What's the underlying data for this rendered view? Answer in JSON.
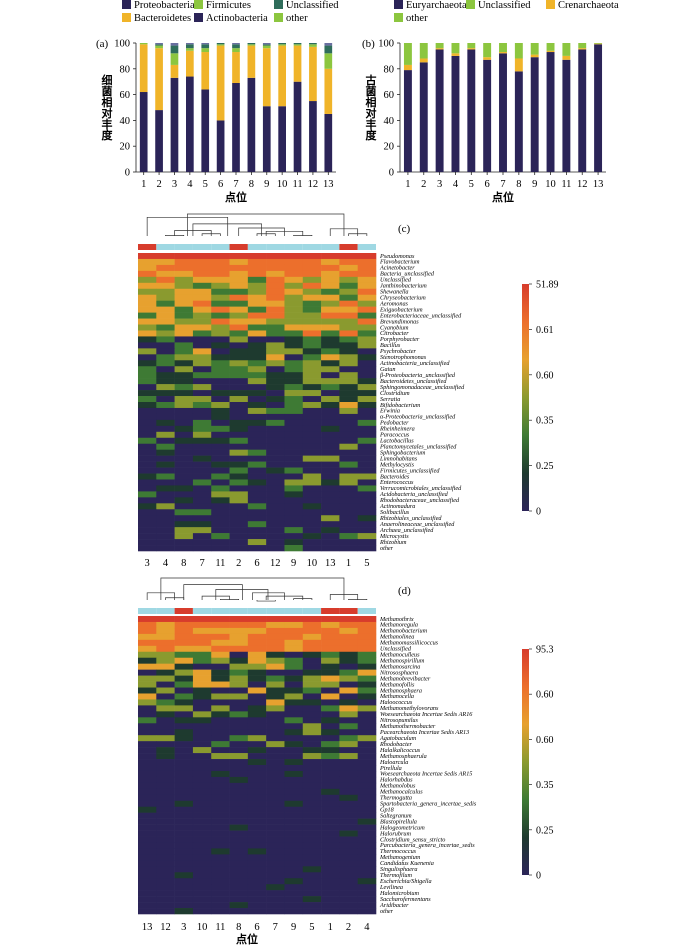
{
  "colors": {
    "Proteobacteria": "#2b2458",
    "Firmicutes": "#8cc63f",
    "Unclassified": "#2f6d5b",
    "Bacteroidetes": "#f0b429",
    "Actinobacteria": "#2b2458",
    "other": "#8cc63f",
    "Euryarchaeota": "#2b2458",
    "Crenarchaeota": "#f0b429",
    "group_red": "#d73c2c",
    "group_blue": "#9fd8e3"
  },
  "heat_scale": [
    "#2b2458",
    "#1e3a2f",
    "#3e7a34",
    "#8a9a2f",
    "#e7a12f",
    "#ec6f2c",
    "#d73c2c"
  ],
  "chart_data": [
    {
      "id": "a",
      "type": "bar",
      "stacked": true,
      "panel_label": "(a)",
      "ylabel": "细菌相对丰度",
      "xlabel": "点位",
      "ylim": [
        0,
        100
      ],
      "yticks": [
        0,
        20,
        40,
        60,
        80,
        100
      ],
      "categories": [
        "1",
        "2",
        "3",
        "4",
        "5",
        "6",
        "7",
        "8",
        "9",
        "10",
        "11",
        "12",
        "13"
      ],
      "legend": [
        {
          "name": "Proteobacteria",
          "color": "#2b2458"
        },
        {
          "name": "Firmicutes",
          "color": "#8cc63f"
        },
        {
          "name": "Unclassified",
          "color": "#2f6d5b"
        },
        {
          "name": "Bacteroidetes",
          "color": "#f0b429"
        },
        {
          "name": "Actinobacteria",
          "color": "#2b2458"
        },
        {
          "name": "other",
          "color": "#8cc63f"
        }
      ],
      "series": [
        {
          "name": "Proteobacteria",
          "color": "#2b2458",
          "values": [
            62,
            48,
            73,
            74,
            64,
            40,
            69,
            73,
            51,
            51,
            70,
            55,
            45
          ]
        },
        {
          "name": "Bacteroidetes",
          "color": "#f0b429",
          "values": [
            37,
            48,
            10,
            20,
            29,
            58,
            24,
            25,
            45,
            47,
            28,
            42,
            35
          ]
        },
        {
          "name": "Firmicutes",
          "color": "#8cc63f",
          "values": [
            1,
            2,
            9,
            2,
            3,
            1,
            3,
            1,
            2,
            1,
            1,
            2,
            12
          ]
        },
        {
          "name": "Unclassified",
          "color": "#2f6d5b",
          "values": [
            0,
            1,
            6,
            3,
            3,
            1,
            3,
            1,
            1,
            1,
            1,
            1,
            6
          ]
        },
        {
          "name": "other",
          "color": "#6a6fa0",
          "values": [
            0,
            1,
            2,
            1,
            1,
            0,
            1,
            0,
            1,
            0,
            0,
            0,
            2
          ]
        }
      ]
    },
    {
      "id": "b",
      "type": "bar",
      "stacked": true,
      "panel_label": "(b)",
      "ylabel": "古菌相对丰度",
      "xlabel": "点位",
      "ylim": [
        0,
        100
      ],
      "yticks": [
        0,
        20,
        40,
        60,
        80,
        100
      ],
      "categories": [
        "1",
        "2",
        "3",
        "4",
        "5",
        "6",
        "7",
        "8",
        "9",
        "10",
        "11",
        "12",
        "13"
      ],
      "legend": [
        {
          "name": "Euryarchaeota",
          "color": "#2b2458"
        },
        {
          "name": "Unclassified",
          "color": "#8cc63f"
        },
        {
          "name": "Crenarchaeota",
          "color": "#f0b429"
        },
        {
          "name": "other",
          "color": "#8cc63f"
        }
      ],
      "series": [
        {
          "name": "Euryarchaeota",
          "color": "#2b2458",
          "values": [
            79,
            85,
            95,
            90,
            95,
            87,
            92,
            78,
            89,
            93,
            87,
            95,
            99
          ]
        },
        {
          "name": "Crenarchaeota",
          "color": "#f0b429",
          "values": [
            4,
            3,
            1,
            2,
            1,
            2,
            1,
            10,
            2,
            1,
            3,
            1,
            0.5
          ]
        },
        {
          "name": "Unclassified",
          "color": "#8cc63f",
          "values": [
            17,
            12,
            4,
            8,
            4,
            11,
            7,
            12,
            9,
            6,
            10,
            4,
            0.5
          ]
        }
      ]
    },
    {
      "id": "c",
      "type": "heatmap",
      "panel_label": "(c)",
      "columns": [
        "3",
        "4",
        "8",
        "7",
        "11",
        "2",
        "6",
        "12",
        "9",
        "10",
        "13",
        "1",
        "5"
      ],
      "group_bar": [
        "red",
        "blue",
        "blue",
        "blue",
        "blue",
        "red",
        "blue",
        "blue",
        "blue",
        "blue",
        "blue",
        "red",
        "blue"
      ],
      "legend_ticks": [
        "51.89",
        "0.61",
        "0.60",
        "0.35",
        "0.25",
        "0"
      ],
      "rows": [
        "Pseudomonas",
        "Flavobacterium",
        "Acinetobacter",
        "Bacteria_unclassified",
        "Unclassified",
        "Janthinobacterium",
        "Shewanella",
        "Chryseobacterium",
        "Aeromonas",
        "Exiguobacterium",
        "Enterobacteriaceae_unclassified",
        "Brevundimonas",
        "Cyanobium",
        "Citrobacter",
        "Porphyrobacter",
        "Bacillus",
        "Psychrobacter",
        "Stenotrophomonas",
        "Actinobacteria_unclassified",
        "Gaiun",
        "β-Proteobacteria_unclassified",
        "Bacteroidetes_unclassified",
        "Sphingomonadaceae_unclassified",
        "Clostridium",
        "Serratia",
        "Bifidobacterium",
        "Erwinia",
        "α-Proteobacteria_unclassified",
        "Pedobacter",
        "Rheinheimera",
        "Paracoccus",
        "Lactobacillus",
        "Planctomycetales_unclassified",
        "Sphingobacterium",
        "Limnohabitans",
        "Methylocystis",
        "Firmicutes_unclassified",
        "Bacteroides",
        "Enterococcus",
        "Verrucomicrobiales_unclassified",
        "Acidobacteria_unclassified",
        "Rhodobacteraceae_unclassified",
        "Actinomadura",
        "Solibacillus",
        "Rhizobiales_unclassified",
        "Anaerolineaceae_unclassified",
        "Archaea_unclassified",
        "Microcystis",
        "Rhizobium",
        "other"
      ]
    },
    {
      "id": "d",
      "type": "heatmap",
      "panel_label": "(d)",
      "xlabel": "点位",
      "columns": [
        "13",
        "12",
        "3",
        "10",
        "11",
        "8",
        "6",
        "7",
        "9",
        "5",
        "1",
        "2",
        "4"
      ],
      "group_bar": [
        "blue",
        "blue",
        "red",
        "blue",
        "blue",
        "blue",
        "blue",
        "blue",
        "blue",
        "blue",
        "red",
        "red",
        "blue"
      ],
      "legend_ticks": [
        "95.3",
        "0.60",
        "0.60",
        "0.35",
        "0.25",
        "0"
      ],
      "rows": [
        "Methanothrix",
        "Methanoregula",
        "Methanobacterium",
        "Methanolinea",
        "Methanomassiliicoccus",
        "Unclassified",
        "Methanoculleus",
        "Methanospirillum",
        "Methanosarcina",
        "Nitrososphaera",
        "Methanobrevibacter",
        "Methanofollis",
        "Methanosphaera",
        "Methanocella",
        "Haloococcus",
        "Methanomethylovorans",
        "Woesearchaeota Incertae Sedis AR16",
        "Nitrosopumilus",
        "Methanothermobacter",
        "Pacearchaeota Incertae Sedis AR13",
        "Agatobaculum",
        "Rhodobacter",
        "Halalkalicoccus",
        "Methanosphaerula",
        "Haloarcula",
        "Pirellula",
        "Woesearchaeota Incertae Sedis AR15",
        "Halorhabdus",
        "Methanolobus",
        "Methanocalculus",
        "Thermogutta",
        "Spartobacteria_genera_incertae_sedis",
        "Gp18",
        "Saltegranum",
        "Blastopirellula",
        "Halogeometricum",
        "Halorubrum",
        "Clostridium_sensu_stricto",
        "Parcubacteria_genera_incertae_sedis",
        "Thermococcus",
        "Methanogenium",
        "Candidatus Kuenenia",
        "Singulisphaera",
        "Thermofilum",
        "Escherichia/Shigella",
        "Levilinea",
        "Halomicrobium",
        "Saccharofermentans",
        "Aridibacter",
        "other"
      ]
    }
  ]
}
